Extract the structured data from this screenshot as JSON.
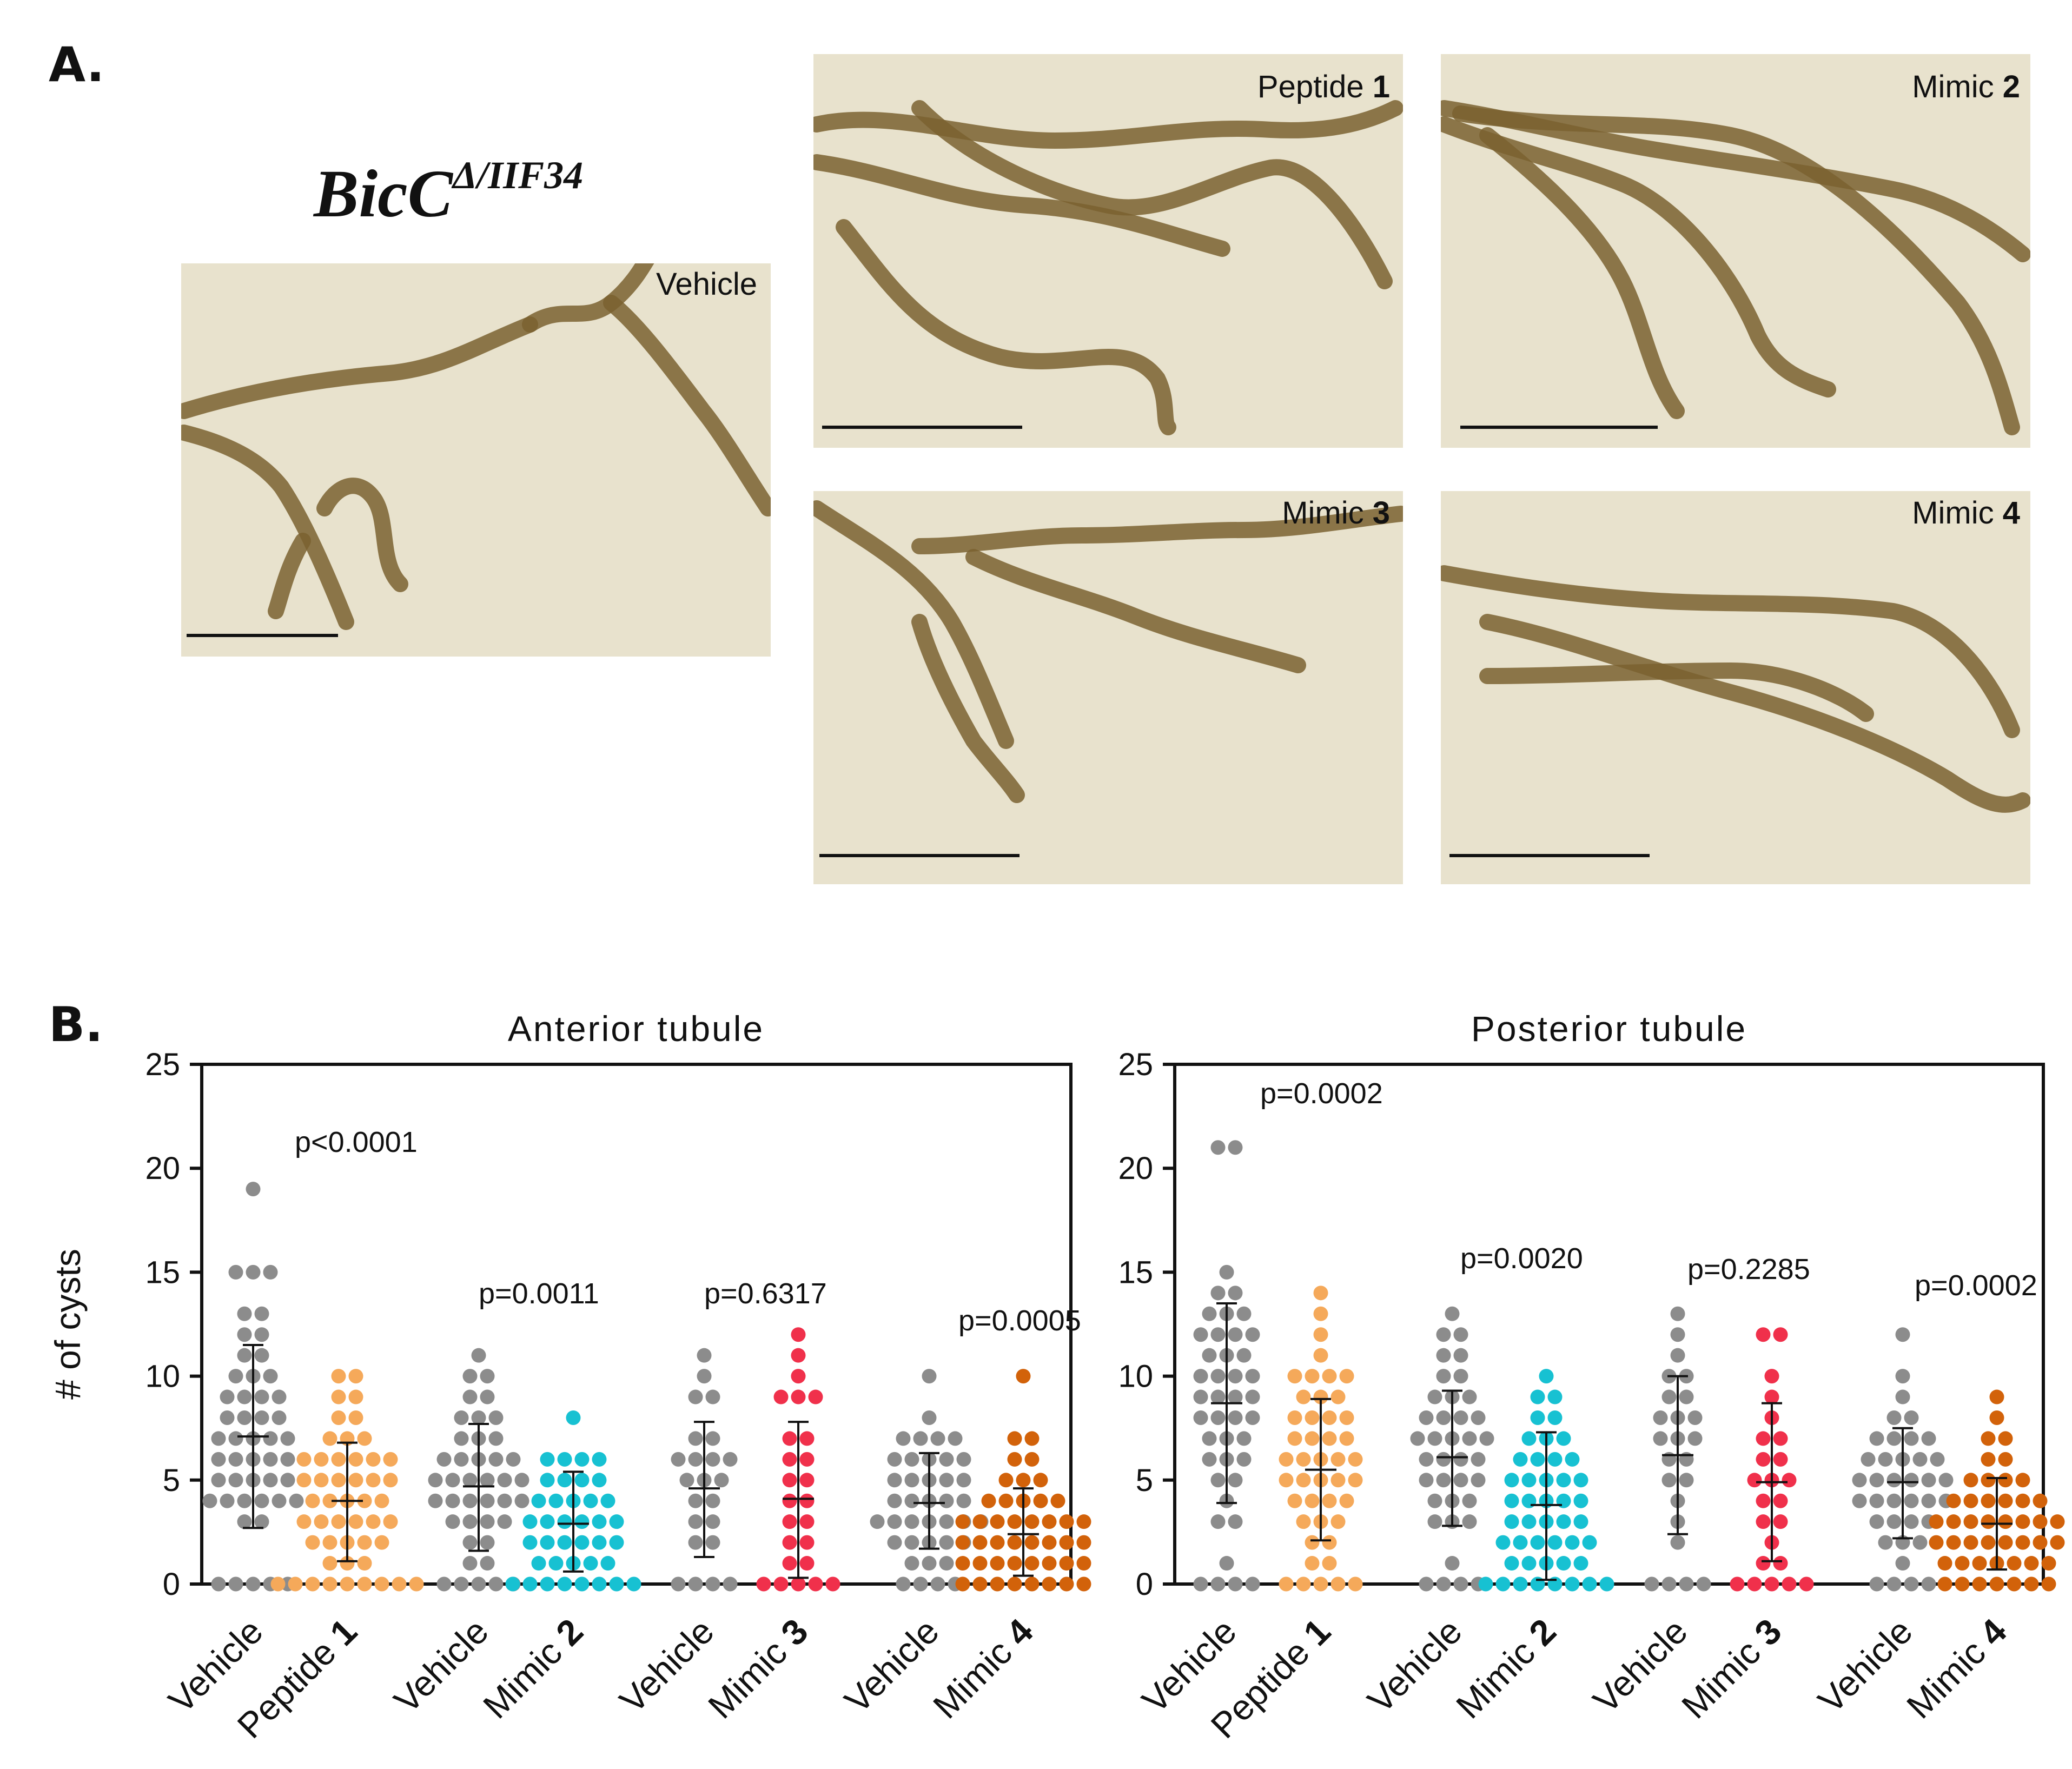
{
  "panel_a": {
    "letter": "A.",
    "genotype_base": "BicC",
    "genotype_super": "Δ/IIF34",
    "images": [
      {
        "id": "vehicle",
        "label": "Vehicle",
        "label_bold": ""
      },
      {
        "id": "peptide1",
        "label": "Peptide ",
        "label_bold": "1"
      },
      {
        "id": "mimic2",
        "label": "Mimic ",
        "label_bold": "2"
      },
      {
        "id": "mimic3",
        "label": "Mimic ",
        "label_bold": "3"
      },
      {
        "id": "mimic4",
        "label": "Mimic ",
        "label_bold": "4"
      }
    ]
  },
  "panel_b": {
    "letter": "B."
  },
  "colors": {
    "vehicle": "#8c8c8c",
    "peptide1": "#f5a95a",
    "mimic2": "#17c1d2",
    "mimic3": "#f0304b",
    "mimic4": "#d2620a",
    "photo_bg": "#e8e2cd",
    "tubule": "#7a6230"
  },
  "chart_data": [
    {
      "type": "scatter",
      "title": "Anterior tubule",
      "ylabel": "# of cysts",
      "ylim": [
        0,
        25
      ],
      "yticks": [
        0,
        5,
        10,
        15,
        20,
        25
      ],
      "groups": [
        {
          "label": "Vehicle",
          "bold": "",
          "color": "#8c8c8c",
          "mean": 7.1,
          "sd_low": 2.7,
          "sd_high": 11.5,
          "values": [
            0,
            0,
            0,
            0,
            0,
            3,
            3,
            4,
            4,
            4,
            4,
            4,
            4,
            5,
            5,
            5,
            5,
            5,
            6,
            6,
            6,
            6,
            6,
            7,
            7,
            7,
            7,
            7,
            8,
            8,
            8,
            8,
            9,
            9,
            9,
            9,
            10,
            10,
            10,
            11,
            11,
            12,
            12,
            13,
            13,
            15,
            15,
            15,
            19
          ]
        },
        {
          "label": "Peptide ",
          "bold": "1",
          "color": "#f5a95a",
          "mean": 4.0,
          "sd_low": 1.1,
          "sd_high": 6.8,
          "values": [
            0,
            0,
            0,
            0,
            0,
            0,
            0,
            0,
            0,
            1,
            1,
            1,
            2,
            2,
            2,
            2,
            2,
            3,
            3,
            3,
            3,
            3,
            3,
            4,
            4,
            4,
            4,
            4,
            5,
            5,
            5,
            5,
            5,
            5,
            6,
            6,
            6,
            6,
            6,
            6,
            7,
            7,
            7,
            8,
            8,
            9,
            9,
            10,
            10
          ]
        },
        {
          "label": "Vehicle",
          "bold": "",
          "color": "#8c8c8c",
          "mean": 4.7,
          "sd_low": 1.6,
          "sd_high": 7.7,
          "values": [
            0,
            0,
            0,
            0,
            0,
            1,
            1,
            2,
            2,
            3,
            3,
            3,
            3,
            4,
            4,
            4,
            4,
            4,
            4,
            5,
            5,
            5,
            5,
            5,
            5,
            6,
            6,
            6,
            6,
            6,
            7,
            7,
            7,
            8,
            8,
            8,
            9,
            9,
            10,
            10,
            11
          ]
        },
        {
          "label": "Mimic ",
          "bold": "2",
          "color": "#17c1d2",
          "mean": 2.9,
          "sd_low": 0.6,
          "sd_high": 5.4,
          "values": [
            0,
            0,
            0,
            0,
            0,
            0,
            0,
            0,
            1,
            1,
            1,
            1,
            1,
            2,
            2,
            2,
            2,
            2,
            2,
            3,
            3,
            3,
            3,
            3,
            3,
            4,
            4,
            4,
            4,
            4,
            5,
            5,
            5,
            5,
            6,
            6,
            6,
            6,
            8
          ]
        },
        {
          "label": "Vehicle",
          "bold": "",
          "color": "#8c8c8c",
          "mean": 4.6,
          "sd_low": 1.3,
          "sd_high": 7.8,
          "values": [
            0,
            0,
            0,
            0,
            2,
            2,
            3,
            3,
            4,
            4,
            5,
            5,
            5,
            6,
            6,
            6,
            6,
            7,
            7,
            9,
            9,
            10,
            11
          ]
        },
        {
          "label": "Mimic ",
          "bold": "3",
          "color": "#f0304b",
          "mean": 4.1,
          "sd_low": 0.3,
          "sd_high": 7.8,
          "values": [
            0,
            0,
            0,
            0,
            0,
            1,
            1,
            2,
            2,
            3,
            3,
            4,
            4,
            5,
            5,
            6,
            6,
            7,
            7,
            9,
            9,
            9,
            10,
            11,
            12
          ]
        },
        {
          "label": "Vehicle",
          "bold": "",
          "color": "#8c8c8c",
          "mean": 3.9,
          "sd_low": 1.7,
          "sd_high": 6.3,
          "values": [
            0,
            0,
            0,
            0,
            1,
            1,
            1,
            2,
            2,
            2,
            2,
            2,
            3,
            3,
            3,
            3,
            3,
            3,
            3,
            4,
            4,
            4,
            4,
            4,
            5,
            5,
            5,
            5,
            5,
            6,
            6,
            6,
            6,
            6,
            7,
            7,
            7,
            7,
            8,
            10
          ]
        },
        {
          "label": "Mimic ",
          "bold": "4",
          "color": "#d2620a",
          "mean": 2.4,
          "sd_low": 0.4,
          "sd_high": 4.6,
          "values": [
            0,
            0,
            0,
            0,
            0,
            0,
            0,
            0,
            1,
            1,
            1,
            1,
            1,
            1,
            1,
            1,
            2,
            2,
            2,
            2,
            2,
            2,
            2,
            2,
            3,
            3,
            3,
            3,
            3,
            3,
            3,
            3,
            4,
            4,
            4,
            4,
            4,
            5,
            5,
            5,
            6,
            6,
            7,
            7,
            10
          ]
        }
      ],
      "annotations": [
        "p<0.0001",
        "p=0.0011",
        "p=0.6317",
        "p=0.0005"
      ]
    },
    {
      "type": "scatter",
      "title": "Posterior tubule",
      "ylabel": "",
      "ylim": [
        0,
        25
      ],
      "yticks": [
        0,
        5,
        10,
        15,
        20,
        25
      ],
      "groups": [
        {
          "label": "Vehicle",
          "bold": "",
          "color": "#8c8c8c",
          "mean": 8.7,
          "sd_low": 3.9,
          "sd_high": 13.5,
          "values": [
            0,
            0,
            0,
            0,
            1,
            3,
            3,
            4,
            5,
            5,
            6,
            6,
            6,
            7,
            7,
            7,
            8,
            8,
            8,
            8,
            9,
            9,
            9,
            9,
            10,
            10,
            10,
            10,
            11,
            11,
            11,
            12,
            12,
            12,
            12,
            13,
            13,
            13,
            14,
            14,
            15,
            21,
            21
          ]
        },
        {
          "label": "Peptide ",
          "bold": "1",
          "color": "#f5a95a",
          "mean": 5.5,
          "sd_low": 2.1,
          "sd_high": 8.9,
          "values": [
            0,
            0,
            0,
            0,
            0,
            1,
            1,
            2,
            2,
            3,
            3,
            3,
            4,
            4,
            4,
            4,
            5,
            5,
            5,
            5,
            5,
            6,
            6,
            6,
            6,
            6,
            7,
            7,
            7,
            7,
            8,
            8,
            8,
            8,
            9,
            9,
            9,
            10,
            10,
            10,
            10,
            11,
            12,
            13,
            14
          ]
        },
        {
          "label": "Vehicle",
          "bold": "",
          "color": "#8c8c8c",
          "mean": 6.1,
          "sd_low": 2.8,
          "sd_high": 9.3,
          "values": [
            0,
            0,
            0,
            0,
            1,
            3,
            3,
            3,
            4,
            4,
            4,
            5,
            5,
            5,
            5,
            6,
            6,
            6,
            6,
            7,
            7,
            7,
            7,
            7,
            8,
            8,
            8,
            8,
            9,
            9,
            9,
            10,
            10,
            11,
            11,
            12,
            12,
            13
          ]
        },
        {
          "label": "Mimic ",
          "bold": "2",
          "color": "#17c1d2",
          "mean": 3.8,
          "sd_low": 0.2,
          "sd_high": 7.3,
          "values": [
            0,
            0,
            0,
            0,
            0,
            0,
            0,
            0,
            1,
            1,
            1,
            1,
            1,
            2,
            2,
            2,
            2,
            2,
            2,
            3,
            3,
            3,
            3,
            3,
            4,
            4,
            4,
            4,
            4,
            5,
            5,
            5,
            5,
            5,
            6,
            6,
            6,
            6,
            7,
            7,
            7,
            8,
            8,
            9,
            9,
            10
          ]
        },
        {
          "label": "Vehicle",
          "bold": "",
          "color": "#8c8c8c",
          "mean": 6.2,
          "sd_low": 2.4,
          "sd_high": 10.0,
          "values": [
            0,
            0,
            0,
            0,
            2,
            3,
            4,
            5,
            5,
            6,
            6,
            7,
            7,
            7,
            8,
            8,
            8,
            9,
            9,
            10,
            10,
            11,
            12,
            13
          ]
        },
        {
          "label": "Mimic ",
          "bold": "3",
          "color": "#f0304b",
          "mean": 4.9,
          "sd_low": 1.1,
          "sd_high": 8.7,
          "values": [
            0,
            0,
            0,
            0,
            0,
            1,
            1,
            2,
            3,
            3,
            4,
            4,
            5,
            5,
            5,
            6,
            6,
            7,
            7,
            8,
            9,
            10,
            12,
            12
          ]
        },
        {
          "label": "Vehicle",
          "bold": "",
          "color": "#8c8c8c",
          "mean": 4.9,
          "sd_low": 2.2,
          "sd_high": 7.5,
          "values": [
            0,
            0,
            0,
            0,
            1,
            2,
            2,
            2,
            3,
            3,
            3,
            3,
            4,
            4,
            4,
            4,
            4,
            4,
            5,
            5,
            5,
            5,
            5,
            5,
            6,
            6,
            6,
            6,
            6,
            7,
            7,
            7,
            7,
            8,
            8,
            9,
            10,
            12
          ]
        },
        {
          "label": "Mimic ",
          "bold": "4",
          "color": "#d2620a",
          "mean": 2.9,
          "sd_low": 0.7,
          "sd_high": 5.1,
          "values": [
            0,
            0,
            0,
            0,
            0,
            0,
            0,
            1,
            1,
            1,
            1,
            1,
            1,
            1,
            2,
            2,
            2,
            2,
            2,
            2,
            2,
            2,
            3,
            3,
            3,
            3,
            3,
            3,
            3,
            3,
            4,
            4,
            4,
            4,
            4,
            4,
            5,
            5,
            5,
            5,
            6,
            6,
            7,
            7,
            8,
            9
          ]
        }
      ],
      "annotations": [
        "p=0.0002",
        "p=0.0020",
        "p=0.2285",
        "p=0.0002"
      ]
    }
  ]
}
